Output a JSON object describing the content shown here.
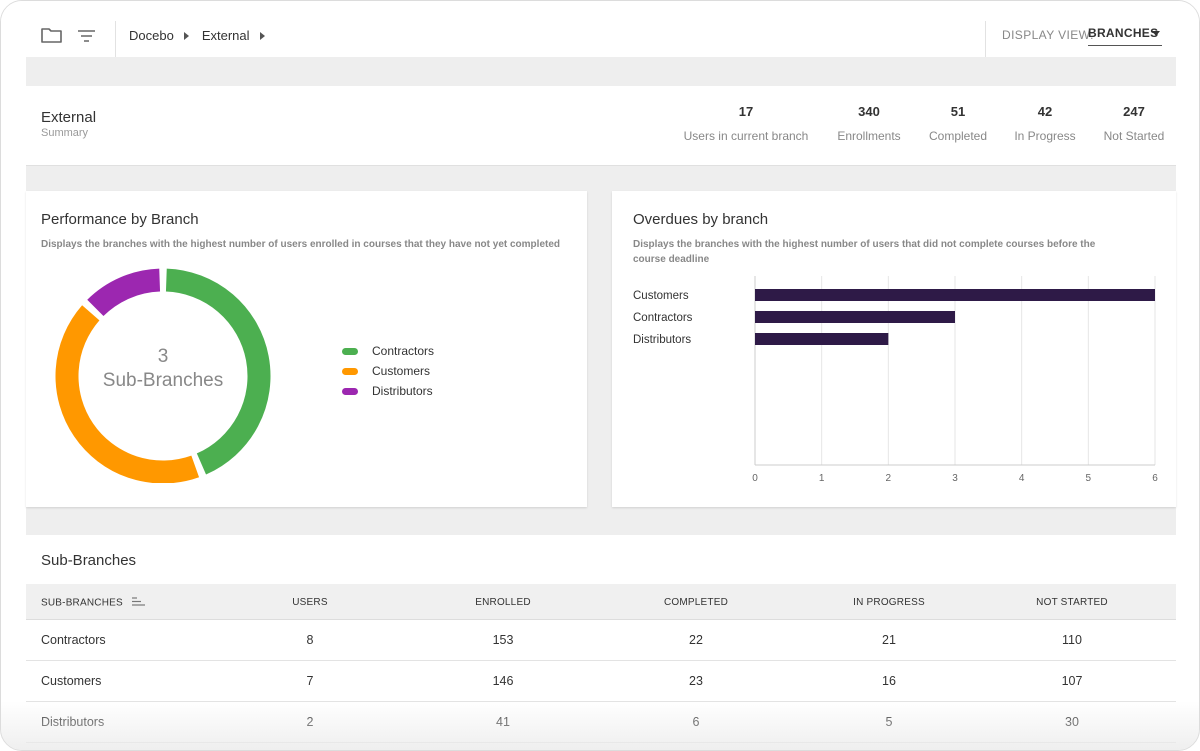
{
  "breadcrumb": [
    "Docebo",
    "External"
  ],
  "display_view": {
    "label": "DISPLAY VIEW:",
    "value": "BRANCHES"
  },
  "summary": {
    "title": "External",
    "subtitle": "Summary",
    "stats": [
      {
        "value": "17",
        "label": "Users in current branch"
      },
      {
        "value": "340",
        "label": "Enrollments"
      },
      {
        "value": "51",
        "label": "Completed"
      },
      {
        "value": "42",
        "label": "In Progress"
      },
      {
        "value": "247",
        "label": "Not Started"
      }
    ]
  },
  "performance": {
    "title": "Performance by Branch",
    "description": "Displays the branches with the highest number of users enrolled in courses that they have not yet completed",
    "center_number": "3",
    "center_label": "Sub-Branches",
    "legend": [
      {
        "name": "Contractors",
        "color": "#4caf50"
      },
      {
        "name": "Customers",
        "color": "#ff9800"
      },
      {
        "name": "Distributors",
        "color": "#9c27b0"
      }
    ]
  },
  "overdues": {
    "title": "Overdues by branch",
    "description_line1": "Displays the branches with the highest number of users that did not complete courses before the",
    "description_line2": "course deadline"
  },
  "chart_data": [
    {
      "type": "pie",
      "categories": [
        "Contractors",
        "Customers",
        "Distributors"
      ],
      "values": [
        44,
        43,
        13
      ],
      "colors": [
        "#4caf50",
        "#ff9800",
        "#9c27b0"
      ]
    },
    {
      "type": "bar",
      "orientation": "horizontal",
      "categories": [
        "Customers",
        "Contractors",
        "Distributors"
      ],
      "values": [
        6,
        3,
        2
      ],
      "xlim": [
        0,
        6
      ],
      "xticks": [
        "0",
        "1",
        "2",
        "3",
        "4",
        "5",
        "6"
      ],
      "color": "#2e1a47",
      "grid": true
    }
  ],
  "sub_branches": {
    "title": "Sub-Branches",
    "columns": [
      "SUB-BRANCHES",
      "USERS",
      "ENROLLED",
      "COMPLETED",
      "IN PROGRESS",
      "NOT STARTED"
    ],
    "rows": [
      [
        "Contractors",
        "8",
        "153",
        "22",
        "21",
        "110"
      ],
      [
        "Customers",
        "7",
        "146",
        "23",
        "16",
        "107"
      ],
      [
        "Distributors",
        "2",
        "41",
        "6",
        "5",
        "30"
      ]
    ]
  }
}
